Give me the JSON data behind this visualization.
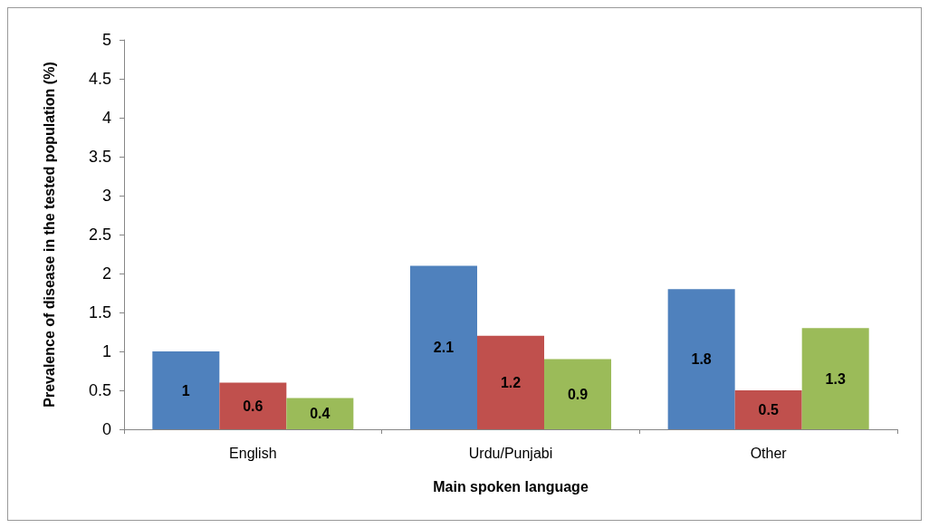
{
  "chart_data": {
    "type": "bar",
    "xlabel": "Main spoken language",
    "ylabel": "Prevalence of disease in the tested population (%)",
    "categories": [
      "English",
      "Urdu/Punjabi",
      "Other"
    ],
    "series": [
      {
        "color": "#4f81bd",
        "values": [
          1,
          2.1,
          1.8
        ]
      },
      {
        "color": "#c0504d",
        "values": [
          0.6,
          1.2,
          0.5
        ]
      },
      {
        "color": "#9bbb59",
        "values": [
          0.4,
          0.9,
          1.3
        ]
      }
    ],
    "ylim": [
      0,
      5
    ],
    "yticks": [
      0,
      0.5,
      1,
      1.5,
      2,
      2.5,
      3,
      3.5,
      4,
      4.5,
      5
    ],
    "data_labels": true
  }
}
